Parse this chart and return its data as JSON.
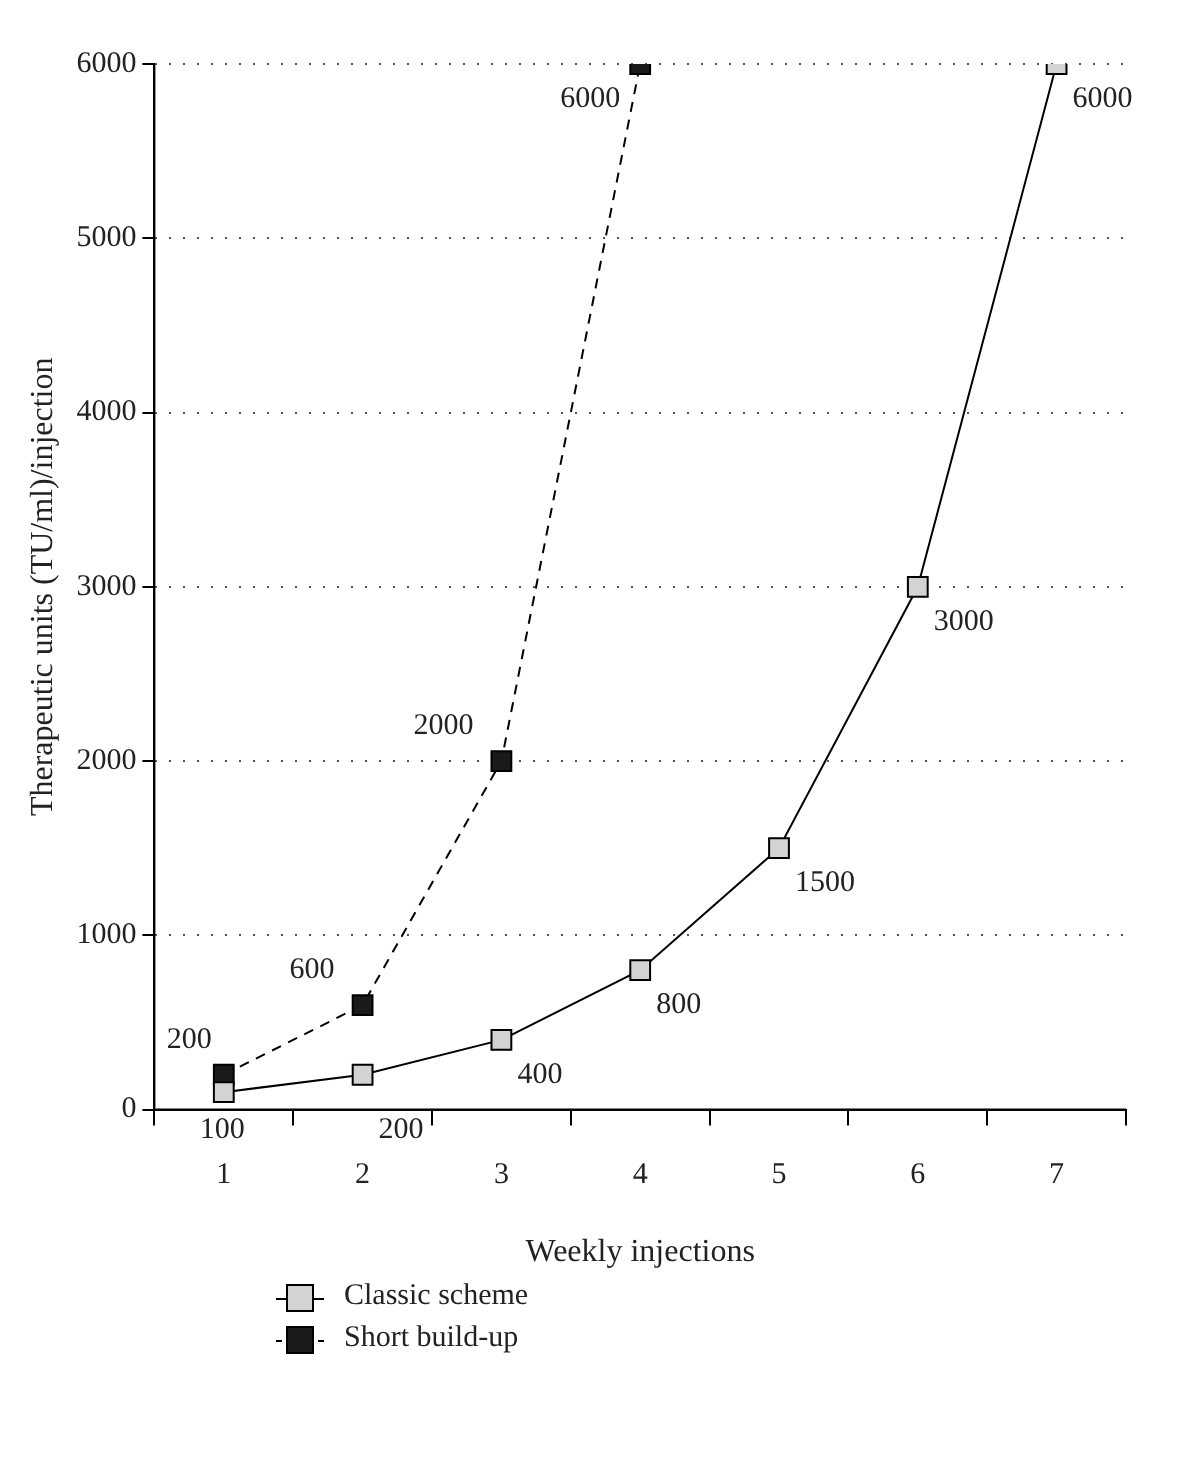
{
  "chart_data": {
    "type": "line",
    "xlabel": "Weekly injections",
    "ylabel": "Therapeutic units (TU/ml)/injection",
    "categories": [
      "1",
      "2",
      "3",
      "4",
      "5",
      "6",
      "7"
    ],
    "series": [
      {
        "name": "Classic scheme",
        "color": "#d3d3d3",
        "line_style": "solid",
        "values": [
          100,
          200,
          400,
          800,
          1500,
          3000,
          6000
        ]
      },
      {
        "name": "Short build-up",
        "color": "#1a1a1a",
        "line_style": "dashed",
        "values": [
          200,
          600,
          2000,
          6000,
          null,
          null,
          null
        ]
      }
    ],
    "ylim": [
      0,
      6000
    ],
    "yticks": [
      0,
      1000,
      2000,
      3000,
      4000,
      5000,
      6000
    ],
    "grid": "y",
    "marker": "square",
    "data_labels": true,
    "legend": "bottom"
  }
}
